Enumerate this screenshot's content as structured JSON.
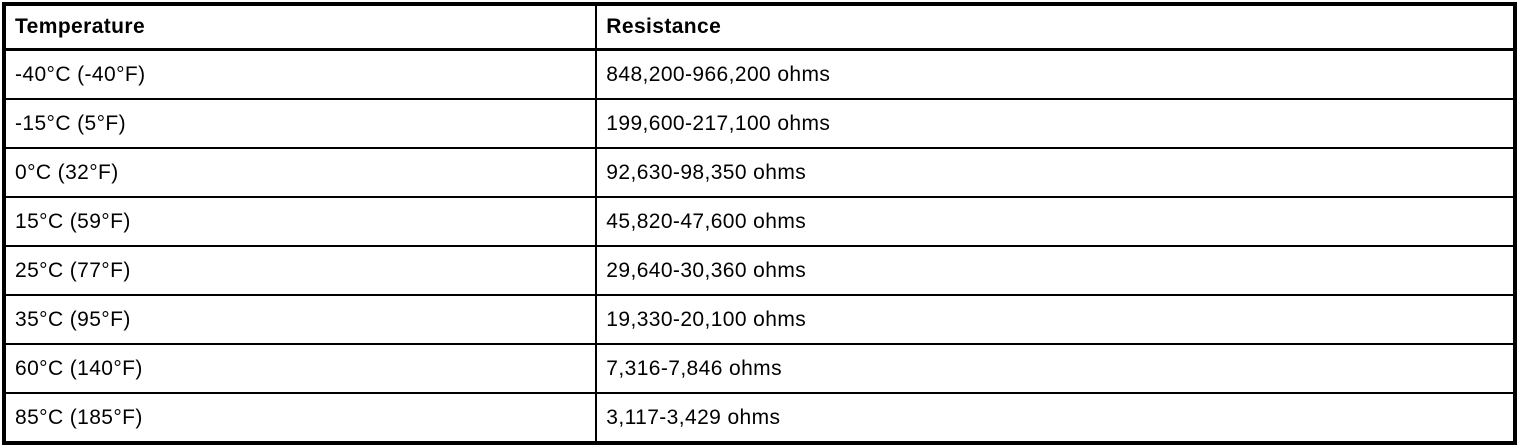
{
  "theme": {
    "border_color": "#000000",
    "background_color": "#ffffff",
    "text_color": "#000000"
  },
  "table": {
    "columns": [
      "Temperature",
      "Resistance"
    ],
    "rows": [
      {
        "temperature": "-40°C (-40°F)",
        "resistance": "848,200-966,200 ohms"
      },
      {
        "temperature": "-15°C (5°F)",
        "resistance": "199,600-217,100 ohms"
      },
      {
        "temperature": "0°C (32°F)",
        "resistance": "92,630-98,350 ohms"
      },
      {
        "temperature": "15°C (59°F)",
        "resistance": "45,820-47,600 ohms"
      },
      {
        "temperature": "25°C (77°F)",
        "resistance": "29,640-30,360 ohms"
      },
      {
        "temperature": "35°C (95°F)",
        "resistance": "19,330-20,100 ohms"
      },
      {
        "temperature": "60°C (140°F)",
        "resistance": "7,316-7,846 ohms"
      },
      {
        "temperature": "85°C (185°F)",
        "resistance": "3,117-3,429 ohms"
      }
    ]
  },
  "chart_data": {
    "type": "table",
    "title": "",
    "columns": [
      "Temperature",
      "Resistance"
    ],
    "rows_celsius": [
      -40,
      -15,
      0,
      15,
      25,
      35,
      60,
      85
    ],
    "rows_fahrenheit": [
      -40,
      5,
      32,
      59,
      77,
      95,
      140,
      185
    ],
    "resistance_min_ohms": [
      848200,
      199600,
      92630,
      45820,
      29640,
      19330,
      7316,
      3117
    ],
    "resistance_max_ohms": [
      966200,
      217100,
      98350,
      47600,
      30360,
      20100,
      7846,
      3429
    ]
  }
}
